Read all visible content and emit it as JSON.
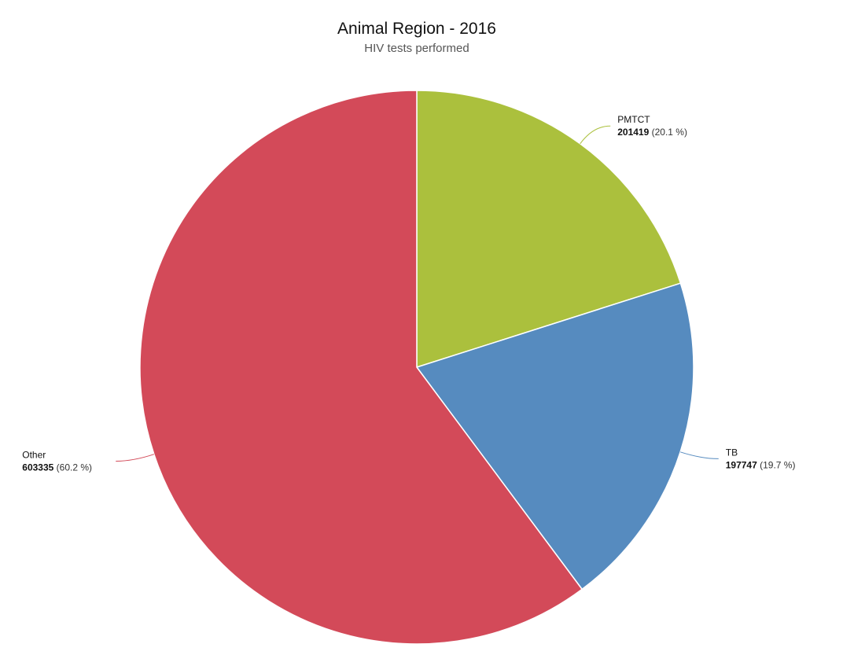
{
  "chart_data": {
    "type": "pie",
    "title": "Animal Region - 2016",
    "subtitle": "HIV tests performed",
    "start_angle_deg": 0,
    "direction": "clockwise",
    "legend": "none",
    "slices": [
      {
        "name": "PMTCT",
        "value": 201419,
        "percent_label": "(20.1 %)",
        "color": "#abc03d"
      },
      {
        "name": "TB",
        "value": 197747,
        "percent_label": "(19.7 %)",
        "color": "#568bbf"
      },
      {
        "name": "Other",
        "value": 603335,
        "percent_label": "(60.2 %)",
        "color": "#d34a59"
      }
    ]
  }
}
